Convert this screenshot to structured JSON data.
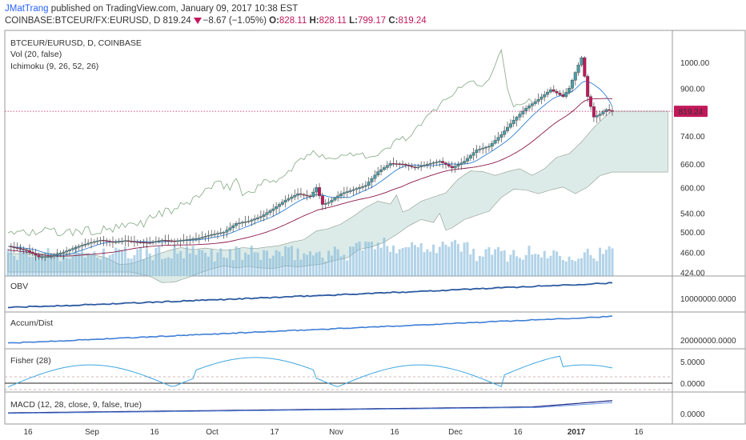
{
  "header": {
    "author": "JMatTrang",
    "published": "published on TradingView.com, January 09, 2017 10:38 EST",
    "symbol": "COINBASE:BTCEUR/FX:EURUSD, D",
    "last": "819.24",
    "change": "−8.67 (−1.05%)",
    "o_label": "O:",
    "o": "828.11",
    "h_label": "H:",
    "h": "828.11",
    "l_label": "L:",
    "l": "799.17",
    "c_label": "C:",
    "c": "819.24"
  },
  "colors": {
    "up": "#4a9da6",
    "down": "#c2185b",
    "accent": "#c2185b",
    "cloud": "#d7e8e4",
    "volume": "#7fb6d9"
  },
  "chart_data": [
    {
      "type": "candlestick",
      "title": "BTCEUR/EURUSD, D, COINBASE",
      "legend": [
        "Vol (20, false)",
        "Ichimoku (9, 26, 52, 26)"
      ],
      "last_price_label": "819.24",
      "y_ticks": [
        "1000.00",
        "900.00",
        "819.24",
        "740.00",
        "660.00",
        "600.00",
        "540.00",
        "500.00",
        "460.00",
        "424.00"
      ],
      "y_tick_values": [
        1000,
        900,
        740,
        660,
        600,
        540,
        500,
        460,
        424
      ],
      "ylim": [
        418,
        1140
      ],
      "y_scale": "log",
      "x_ticks": [
        "16",
        "Sep",
        "16",
        "Oct",
        "17",
        "Nov",
        "16",
        "Dec",
        "16",
        "2017",
        "16"
      ],
      "close_path": [
        [
          0,
          472
        ],
        [
          6,
          464
        ],
        [
          10,
          452
        ],
        [
          14,
          453
        ],
        [
          18,
          461
        ],
        [
          22,
          470
        ],
        [
          26,
          478
        ],
        [
          30,
          484
        ],
        [
          34,
          480
        ],
        [
          38,
          483
        ],
        [
          42,
          480
        ],
        [
          46,
          479
        ],
        [
          50,
          484
        ],
        [
          54,
          482
        ],
        [
          58,
          485
        ],
        [
          62,
          488
        ],
        [
          66,
          495
        ],
        [
          70,
          500
        ],
        [
          74,
          518
        ],
        [
          78,
          523
        ],
        [
          82,
          533
        ],
        [
          86,
          550
        ],
        [
          90,
          570
        ],
        [
          94,
          585
        ],
        [
          98,
          578
        ],
        [
          100,
          600
        ],
        [
          102,
          560
        ],
        [
          104,
          565
        ],
        [
          108,
          585
        ],
        [
          112,
          595
        ],
        [
          116,
          605
        ],
        [
          120,
          640
        ],
        [
          124,
          662
        ],
        [
          128,
          660
        ],
        [
          132,
          650
        ],
        [
          136,
          660
        ],
        [
          140,
          668
        ],
        [
          144,
          650
        ],
        [
          148,
          668
        ],
        [
          152,
          700
        ],
        [
          156,
          710
        ],
        [
          160,
          745
        ],
        [
          164,
          790
        ],
        [
          168,
          830
        ],
        [
          172,
          860
        ],
        [
          176,
          895
        ],
        [
          180,
          870
        ],
        [
          182,
          900
        ],
        [
          184,
          960
        ],
        [
          186,
          1020
        ],
        [
          188,
          870
        ],
        [
          190,
          800
        ],
        [
          192,
          810
        ],
        [
          194,
          825
        ],
        [
          196,
          819
        ]
      ],
      "obv_label": "OBV",
      "obv_tick": "10000000.0000",
      "accum_label": "Accum/Dist",
      "accum_tick": "20000000.0000",
      "fisher_label": "Fisher (28)",
      "fisher_ticks": [
        "5.0000",
        "0.0000"
      ],
      "macd_label": "MACD (12, 28, close, 9, false, true)",
      "macd_tick": "0.0000"
    }
  ]
}
